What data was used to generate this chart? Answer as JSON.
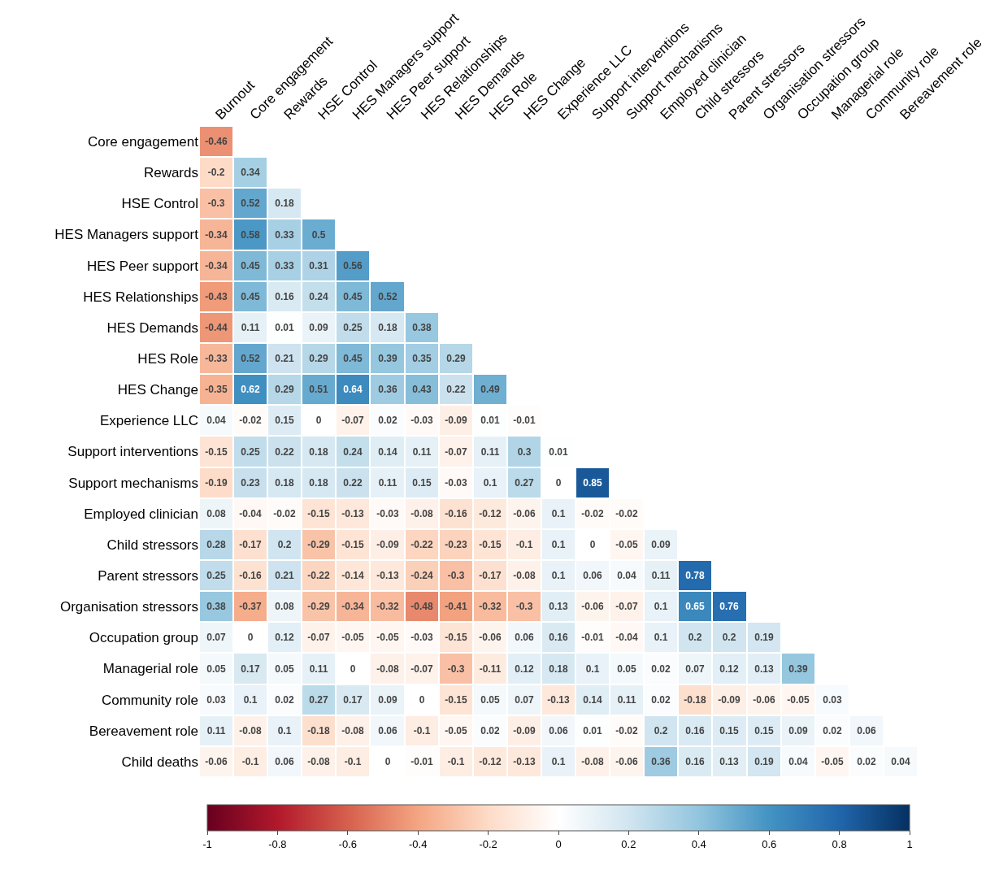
{
  "chart_data": {
    "type": "heatmap",
    "categories": [
      "Burnout",
      "Core engagement",
      "Rewards",
      "HSE Control",
      "HES Managers support",
      "HES Peer support",
      "HES Relationships",
      "HES Demands",
      "HES Role",
      "HES Change",
      "Experience LLC",
      "Support interventions",
      "Support mechanisms",
      "Employed clinician",
      "Child stressors",
      "Parent stressors",
      "Organisation stressors",
      "Occupation group",
      "Managerial role",
      "Community role",
      "Bereavement role"
    ],
    "y_categories": [
      "Core engagement",
      "Rewards",
      "HSE Control",
      "HES Managers support",
      "HES Peer support",
      "HES Relationships",
      "HES Demands",
      "HES Role",
      "HES Change",
      "Experience LLC",
      "Support interventions",
      "Support mechanisms",
      "Employed clinician",
      "Child stressors",
      "Parent stressors",
      "Organisation stressors",
      "Occupation group",
      "Managerial role",
      "Community role",
      "Bereavement role",
      "Child deaths"
    ],
    "cells": [
      [
        -0.46,
        null,
        null,
        null,
        null,
        null,
        null,
        null,
        null,
        null,
        null,
        null,
        null,
        null,
        null,
        null,
        null,
        null,
        null,
        null,
        null
      ],
      [
        -0.2,
        0.34,
        null,
        null,
        null,
        null,
        null,
        null,
        null,
        null,
        null,
        null,
        null,
        null,
        null,
        null,
        null,
        null,
        null,
        null,
        null
      ],
      [
        -0.3,
        0.52,
        0.18,
        null,
        null,
        null,
        null,
        null,
        null,
        null,
        null,
        null,
        null,
        null,
        null,
        null,
        null,
        null,
        null,
        null,
        null
      ],
      [
        -0.34,
        0.58,
        0.33,
        0.5,
        null,
        null,
        null,
        null,
        null,
        null,
        null,
        null,
        null,
        null,
        null,
        null,
        null,
        null,
        null,
        null,
        null
      ],
      [
        -0.34,
        0.45,
        0.33,
        0.31,
        0.56,
        null,
        null,
        null,
        null,
        null,
        null,
        null,
        null,
        null,
        null,
        null,
        null,
        null,
        null,
        null,
        null
      ],
      [
        -0.43,
        0.45,
        0.16,
        0.24,
        0.45,
        0.52,
        null,
        null,
        null,
        null,
        null,
        null,
        null,
        null,
        null,
        null,
        null,
        null,
        null,
        null,
        null
      ],
      [
        -0.44,
        0.11,
        0.01,
        0.09,
        0.25,
        0.18,
        0.38,
        null,
        null,
        null,
        null,
        null,
        null,
        null,
        null,
        null,
        null,
        null,
        null,
        null,
        null
      ],
      [
        -0.33,
        0.52,
        0.21,
        0.29,
        0.45,
        0.39,
        0.35,
        0.29,
        null,
        null,
        null,
        null,
        null,
        null,
        null,
        null,
        null,
        null,
        null,
        null,
        null
      ],
      [
        -0.35,
        0.62,
        0.29,
        0.51,
        0.64,
        0.36,
        0.43,
        0.22,
        0.49,
        null,
        null,
        null,
        null,
        null,
        null,
        null,
        null,
        null,
        null,
        null,
        null
      ],
      [
        0.04,
        -0.02,
        0.15,
        0,
        -0.07,
        0.02,
        -0.03,
        -0.09,
        0.01,
        -0.01,
        null,
        null,
        null,
        null,
        null,
        null,
        null,
        null,
        null,
        null,
        null
      ],
      [
        -0.15,
        0.25,
        0.22,
        0.18,
        0.24,
        0.14,
        0.11,
        -0.07,
        0.11,
        0.3,
        0.01,
        null,
        null,
        null,
        null,
        null,
        null,
        null,
        null,
        null,
        null
      ],
      [
        -0.19,
        0.23,
        0.18,
        0.18,
        0.22,
        0.11,
        0.15,
        -0.03,
        0.1,
        0.27,
        0,
        0.85,
        null,
        null,
        null,
        null,
        null,
        null,
        null,
        null,
        null
      ],
      [
        0.08,
        -0.04,
        -0.02,
        -0.15,
        -0.13,
        -0.03,
        -0.08,
        -0.16,
        -0.12,
        -0.06,
        0.1,
        -0.02,
        -0.02,
        null,
        null,
        null,
        null,
        null,
        null,
        null,
        null
      ],
      [
        0.28,
        -0.17,
        0.2,
        -0.29,
        -0.15,
        -0.09,
        -0.22,
        -0.23,
        -0.15,
        -0.1,
        0.1,
        0,
        -0.05,
        0.09,
        null,
        null,
        null,
        null,
        null,
        null,
        null
      ],
      [
        0.25,
        -0.16,
        0.21,
        -0.22,
        -0.14,
        -0.13,
        -0.24,
        -0.3,
        -0.17,
        -0.08,
        0.1,
        0.06,
        0.04,
        0.11,
        0.78,
        null,
        null,
        null,
        null,
        null,
        null
      ],
      [
        0.38,
        -0.37,
        0.08,
        -0.29,
        -0.34,
        -0.32,
        -0.48,
        -0.41,
        -0.32,
        -0.3,
        0.13,
        -0.06,
        -0.07,
        0.1,
        0.65,
        0.76,
        null,
        null,
        null,
        null,
        null
      ],
      [
        0.07,
        0,
        0.12,
        -0.07,
        -0.05,
        -0.05,
        -0.03,
        -0.15,
        -0.06,
        0.06,
        0.16,
        -0.01,
        -0.04,
        0.1,
        0.2,
        0.2,
        0.19,
        null,
        null,
        null,
        null
      ],
      [
        0.05,
        0.17,
        0.05,
        0.11,
        0,
        -0.08,
        -0.07,
        -0.3,
        -0.11,
        0.12,
        0.18,
        0.1,
        0.05,
        0.02,
        0.07,
        0.12,
        0.13,
        0.39,
        null,
        null,
        null
      ],
      [
        0.03,
        0.1,
        0.02,
        0.27,
        0.17,
        0.09,
        0,
        -0.15,
        0.05,
        0.07,
        -0.13,
        0.14,
        0.11,
        0.02,
        -0.18,
        -0.09,
        -0.06,
        -0.05,
        0.03,
        null,
        null
      ],
      [
        0.11,
        -0.08,
        0.1,
        -0.18,
        -0.08,
        0.06,
        -0.1,
        -0.05,
        0.02,
        -0.09,
        0.06,
        0.01,
        -0.02,
        0.2,
        0.16,
        0.15,
        0.15,
        0.09,
        0.02,
        0.06,
        null
      ],
      [
        -0.06,
        -0.1,
        0.06,
        -0.08,
        -0.1,
        0,
        -0.01,
        -0.1,
        -0.12,
        -0.13,
        0.1,
        -0.08,
        -0.06,
        0.36,
        0.16,
        0.13,
        0.19,
        0.04,
        -0.05,
        0.02,
        0.04
      ]
    ],
    "clim": [
      -1,
      1
    ],
    "cticks": [
      -1,
      -0.8,
      -0.6,
      -0.4,
      -0.2,
      0,
      0.2,
      0.4,
      0.6,
      0.8,
      1
    ],
    "data_labels": true
  }
}
